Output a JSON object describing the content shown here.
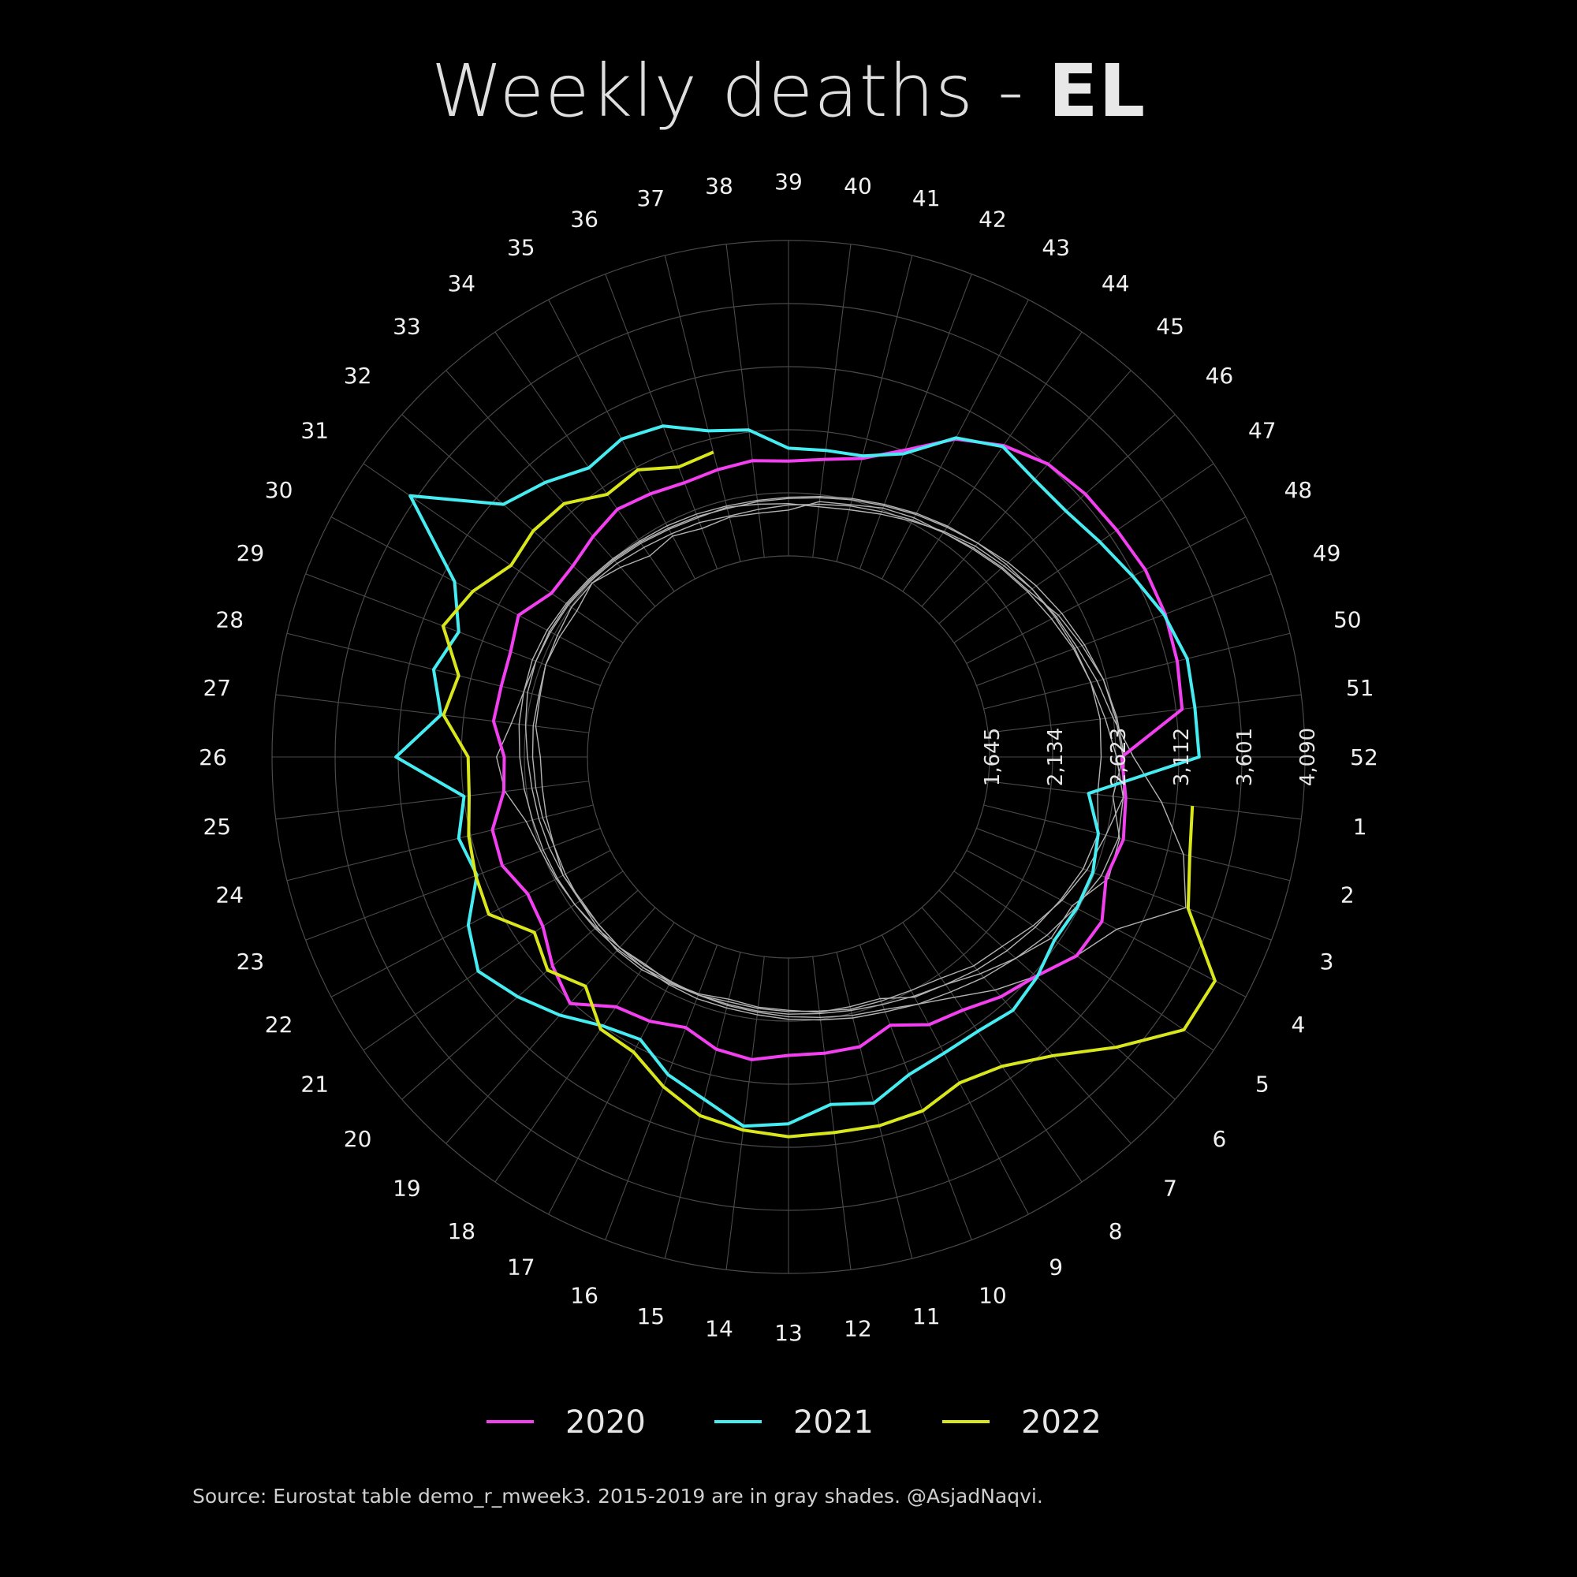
{
  "title": {
    "text": "Weekly deaths - ",
    "country": "EL"
  },
  "source": "Source: Eurostat table demo_r_mweek3. 2015-2019 are in gray shades. @AsjadNaqvi.",
  "colors": {
    "background": "#000000",
    "grid": "#4a4a4a",
    "baseline": "#b3b3b3",
    "y2020": "#f23ff0",
    "y2021": "#45ecf2",
    "y2022": "#d8e61b"
  },
  "chart_data": {
    "type": "line",
    "coordinate_system": "polar",
    "direction": "clockwise",
    "start_week_at_top": 39,
    "weeks": [
      1,
      2,
      3,
      4,
      5,
      6,
      7,
      8,
      9,
      10,
      11,
      12,
      13,
      14,
      15,
      16,
      17,
      18,
      19,
      20,
      21,
      22,
      23,
      24,
      25,
      26,
      27,
      28,
      29,
      30,
      31,
      32,
      33,
      34,
      35,
      36,
      37,
      38,
      39,
      40,
      41,
      42,
      43,
      44,
      45,
      46,
      47,
      48,
      49,
      50,
      51,
      52
    ],
    "week_labels": [
      "1",
      "2",
      "3",
      "4",
      "5",
      "6",
      "7",
      "8",
      "9",
      "10",
      "11",
      "12",
      "13",
      "14",
      "15",
      "16",
      "17",
      "18",
      "19",
      "20",
      "21",
      "22",
      "23",
      "24",
      "25",
      "26",
      "27",
      "28",
      "29",
      "30",
      "31",
      "32",
      "33",
      "34",
      "35",
      "36",
      "37",
      "38",
      "39",
      "40",
      "41",
      "42",
      "43",
      "44",
      "45",
      "46",
      "47",
      "48",
      "49",
      "50",
      "51",
      "52"
    ],
    "radial_ticks": [
      1645,
      2134,
      2623,
      3112,
      3601,
      4090
    ],
    "radial_tick_labels": [
      "1,645",
      "2,134",
      "2,623",
      "3,112",
      "3,601",
      "4,090"
    ],
    "rlim": [
      0,
      4090
    ],
    "legend_position": "bottom",
    "series": [
      {
        "name": "2020",
        "values": [
          2720,
          2760,
          2720,
          2830,
          2800,
          2650,
          2570,
          2470,
          2430,
          2310,
          2400,
          2400,
          2400,
          2450,
          2420,
          2330,
          2400,
          2440,
          2640,
          2530,
          2400,
          2370,
          2460,
          2450,
          2310,
          2290,
          2390,
          2380,
          2390,
          2450,
          2320,
          2320,
          2370,
          2420,
          2390,
          2360,
          2380,
          2400,
          2380,
          2410,
          2470,
          2630,
          2870,
          3020,
          3120,
          3160,
          3180,
          3210,
          3210,
          3190,
          3160,
          2670
        ]
      },
      {
        "name": "2021",
        "values": [
          2430,
          2560,
          2610,
          2610,
          2590,
          2660,
          2710,
          2670,
          2680,
          2720,
          2850,
          2800,
          2930,
          2970,
          2820,
          2720,
          2560,
          2620,
          2760,
          2890,
          3010,
          2890,
          2670,
          2720,
          2620,
          3130,
          2800,
          2920,
          2820,
          3010,
          3650,
          3040,
          2930,
          2810,
          2870,
          2830,
          2690,
          2640,
          2480,
          2480,
          2490,
          2600,
          2880,
          3010,
          2960,
          2960,
          3020,
          3100,
          3200,
          3270,
          3260,
          3270
        ]
      },
      {
        "name": "2022",
        "values": [
          3240,
          3290,
          3400,
          3820,
          3810,
          3480,
          3180,
          3000,
          2940,
          3020,
          3030,
          3020,
          3030,
          3000,
          2950,
          2820,
          2670,
          2650,
          2460,
          2580,
          2480,
          2710,
          2680,
          2640,
          2580,
          2570,
          2780,
          2720,
          2950,
          2850,
          2700,
          2730,
          2710,
          2560,
          2600,
          2490,
          2520
        ]
      },
      {
        "name": "",
        "values": [
          2620,
          2730,
          2740,
          2570,
          2560,
          2440,
          2330,
          2230,
          2190,
          2090,
          2080,
          2080,
          2050,
          2040,
          2020,
          2050,
          2060,
          2040,
          2060,
          2050,
          2040,
          2060,
          2030,
          2020,
          2010,
          2010,
          2060,
          2070,
          2100,
          2090,
          2080,
          2120,
          2050,
          1980,
          2020,
          1980,
          2000,
          1990,
          2000,
          2080,
          2100,
          2150,
          2180,
          2200,
          2250,
          2300,
          2350,
          2450,
          2520,
          2600,
          2640,
          2680
        ]
      },
      {
        "name": "",
        "values": [
          2700,
          2620,
          2560,
          2480,
          2390,
          2300,
          2250,
          2170,
          2130,
          2110,
          2100,
          2070,
          2060,
          2050,
          2040,
          2060,
          2070,
          2090,
          2090,
          2070,
          2050,
          2040,
          2030,
          2050,
          2060,
          2070,
          2080,
          2080,
          2100,
          2110,
          2130,
          2120,
          2090,
          2060,
          2040,
          2030,
          2010,
          2020,
          2040,
          2060,
          2090,
          2120,
          2160,
          2200,
          2240,
          2290,
          2340,
          2390,
          2450,
          2500,
          2560,
          2630
        ]
      },
      {
        "name": "",
        "values": [
          3000,
          3240,
          3380,
          2960,
          2800,
          2650,
          2500,
          2350,
          2250,
          2180,
          2150,
          2120,
          2100,
          2080,
          2070,
          2060,
          2050,
          2050,
          2060,
          2080,
          2100,
          2120,
          2140,
          2180,
          2300,
          2350,
          2250,
          2200,
          2180,
          2170,
          2160,
          2140,
          2120,
          2100,
          2080,
          2070,
          2080,
          2060,
          2050,
          2040,
          2060,
          2100,
          2150,
          2210,
          2270,
          2320,
          2380,
          2430,
          2480,
          2550,
          2620,
          2760
        ]
      },
      {
        "name": "",
        "values": [
          2700,
          2720,
          2680,
          2600,
          2520,
          2440,
          2370,
          2300,
          2250,
          2200,
          2170,
          2140,
          2120,
          2100,
          2090,
          2090,
          2080,
          2070,
          2060,
          2050,
          2050,
          2060,
          2070,
          2080,
          2090,
          2110,
          2140,
          2170,
          2180,
          2180,
          2170,
          2150,
          2130,
          2110,
          2090,
          2080,
          2070,
          2080,
          2090,
          2110,
          2140,
          2170,
          2210,
          2250,
          2300,
          2360,
          2420,
          2480,
          2540,
          2600,
          2650,
          2690
        ]
      },
      {
        "name": "",
        "values": [
          2500,
          2560,
          2530,
          2470,
          2410,
          2350,
          2290,
          2230,
          2180,
          2140,
          2110,
          2090,
          2080,
          2070,
          2060,
          2060,
          2060,
          2070,
          2080,
          2090,
          2100,
          2110,
          2120,
          2130,
          2150,
          2170,
          2190,
          2200,
          2210,
          2200,
          2180,
          2160,
          2140,
          2120,
          2110,
          2100,
          2090,
          2090,
          2100,
          2120,
          2150,
          2180,
          2220,
          2260,
          2300,
          2340,
          2380,
          2420,
          2460,
          2500,
          2520,
          2510
        ]
      }
    ]
  }
}
